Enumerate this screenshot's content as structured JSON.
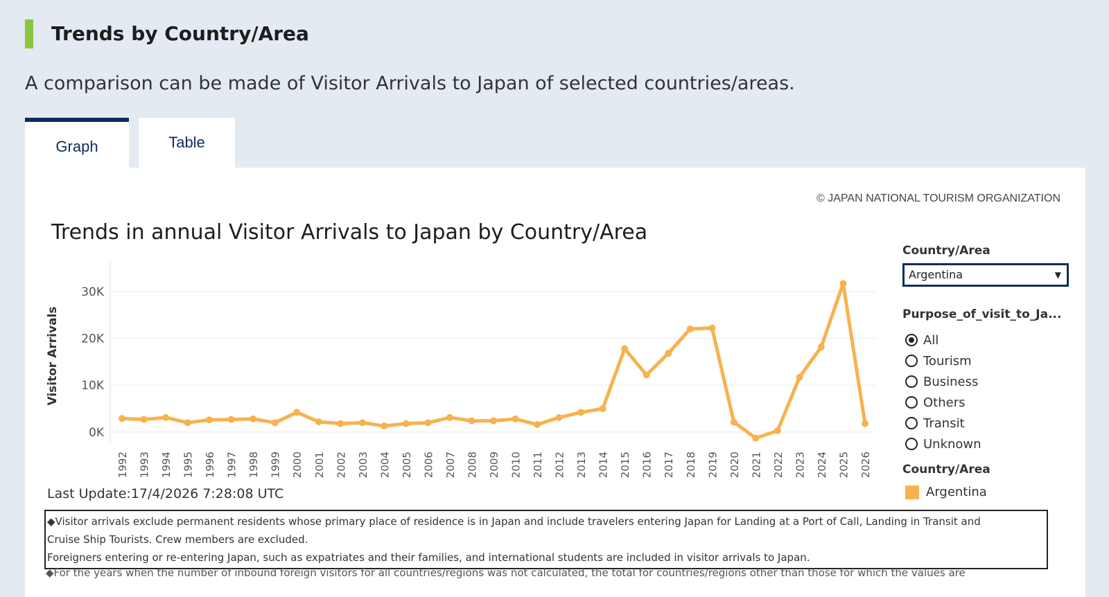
{
  "header": {
    "title": "Trends by Country/Area",
    "subtitle": "A comparison can be made of Visitor Arrivals to Japan of selected countries/areas.",
    "accent_color": "#8cc63f"
  },
  "tabs": [
    {
      "label": "Graph",
      "active": true
    },
    {
      "label": "Table",
      "active": false
    }
  ],
  "panel": {
    "copyright": "© JAPAN NATIONAL TOURISM ORGANIZATION",
    "last_update": "Last Update:17/4/2026 7:28:08 UTC",
    "notes": [
      "◆Visitor arrivals exclude permanent residents whose primary place of residence is in Japan and include travelers entering Japan for Landing at a Port of Call,  Landing in Transit and",
      "Cruise Ship Tourists. Crew members are excluded.",
      "Foreigners entering or re-entering Japan, such as expatriates and their families, and international students are included in visitor arrivals to Japan."
    ],
    "notes_cut": "◆For the years when the number of inbound foreign visitors for all countries/regions was not calculated, the total for countries/regions other than those for which the values are"
  },
  "filters": {
    "country_label": "Country/Area",
    "country_value": "Argentina",
    "purpose_label": "Purpose_of_visit_to_Ja...",
    "purpose_options": [
      "All",
      "Tourism",
      "Business",
      "Others",
      "Transit",
      "Unknown"
    ],
    "purpose_selected": "All",
    "legend_label": "Country/Area",
    "legend_item": "Argentina",
    "legend_color": "#f7b24f"
  },
  "chart_data": {
    "type": "line",
    "title": "Trends in annual Visitor Arrivals to Japan by Country/Area",
    "xlabel": "",
    "ylabel": "Visitor Arrivals",
    "color": "#f7b24f",
    "ylim": [
      -1500,
      35000
    ],
    "yticks": [
      0,
      10000,
      20000,
      30000
    ],
    "ytick_labels": [
      "0K",
      "10K",
      "20K",
      "30K"
    ],
    "grid": true,
    "categories": [
      "1992",
      "1993",
      "1994",
      "1995",
      "1996",
      "1997",
      "1998",
      "1999",
      "2000",
      "2001",
      "2002",
      "2003",
      "2004",
      "2005",
      "2006",
      "2007",
      "2008",
      "2009",
      "2010",
      "2011",
      "2012",
      "2013",
      "2014",
      "2015",
      "2016",
      "2017",
      "2018",
      "2019",
      "2020",
      "2021",
      "2022",
      "2023",
      "2024",
      "2025",
      "2026"
    ],
    "series": [
      {
        "name": "Argentina",
        "values": [
          2900,
          2700,
          3100,
          2000,
          2600,
          2700,
          2800,
          2000,
          4200,
          2200,
          1800,
          2000,
          1300,
          1800,
          2000,
          3100,
          2400,
          2400,
          2800,
          1600,
          3100,
          4200,
          5000,
          17800,
          12200,
          16800,
          22000,
          22200,
          2100,
          -1300,
          300,
          11700,
          18200,
          31700,
          1800
        ]
      }
    ]
  }
}
